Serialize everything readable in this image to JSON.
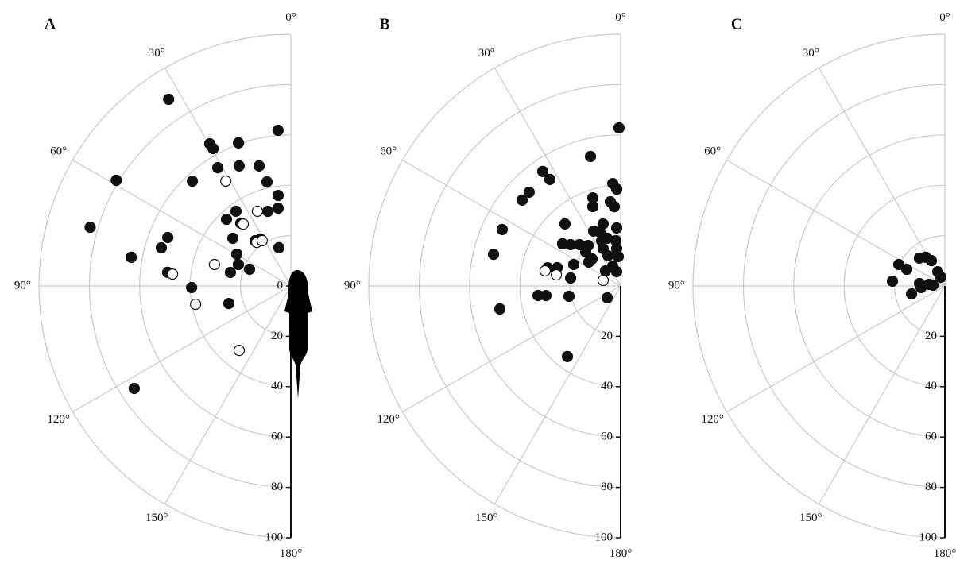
{
  "chart_data": [
    {
      "type": "polar-scatter",
      "panel_label": "A",
      "rlim": [
        0,
        100
      ],
      "thetalim": [
        0,
        180
      ],
      "rticks": [
        0,
        20,
        40,
        60,
        80,
        100
      ],
      "thetaticks": [
        {
          "value": 0,
          "label": "0°"
        },
        {
          "value": 30,
          "label": "30°"
        },
        {
          "value": 60,
          "label": "60°"
        },
        {
          "value": 90,
          "label": "90°"
        },
        {
          "value": 120,
          "label": "120°"
        },
        {
          "value": 150,
          "label": "150°"
        },
        {
          "value": 180,
          "label": "180°"
        }
      ],
      "grid": true,
      "series": [
        {
          "color": "#111111",
          "marker_fill": "#111111",
          "theta": [
            33.2,
            4.7,
            58.8,
            73.7,
            29.7,
            29.5,
            20.1,
            31.7,
            23.3,
            14.8,
            12.9,
            43.2,
            8,
            9.3,
            17.1,
            36.3,
            44,
            38.6,
            50.6,
            38.3,
            32.8,
            17.4,
            59.5,
            67.8,
            68,
            77.4,
            68.5,
            73.6,
            79.8,
            83.7,
            90.9,
            105.8,
            123.2
          ],
          "values": [
            88.6,
            62,
            81,
            83,
            65,
            62.7,
            60.5,
            55.2,
            51.9,
            49.3,
            42.4,
            57.1,
            36.3,
            31.3,
            31,
            36.8,
            36.8,
            31.9,
            29.8,
            22.9,
            22.1,
            15.9,
            24.9,
            22.5,
            17.7,
            24.6,
            52.5,
            53.6,
            64.4,
            49.2,
            39.4,
            25.6,
            74.3
          ]
        },
        {
          "color": "#111111",
          "marker_fill": "#ffffff",
          "theta": [
            31.8,
            24.1,
            37.6,
            38,
            32.3,
            74.3,
            84.3,
            100.9,
            141.3
          ],
          "values": [
            49,
            32.5,
            31,
            22,
            21.3,
            31.5,
            47.2,
            38.5,
            32.8
          ]
        }
      ]
    },
    {
      "type": "polar-scatter",
      "panel_label": "B",
      "rlim": [
        0,
        100
      ],
      "thetalim": [
        0,
        180
      ],
      "rticks": [
        20,
        40,
        60,
        80,
        100
      ],
      "thetaticks": [
        {
          "value": 0,
          "label": "0°"
        },
        {
          "value": 30,
          "label": "30°"
        },
        {
          "value": 60,
          "label": "60°"
        },
        {
          "value": 90,
          "label": "90°"
        },
        {
          "value": 120,
          "label": "120°"
        },
        {
          "value": 150,
          "label": "150°"
        },
        {
          "value": 180,
          "label": "180°"
        }
      ],
      "grid": true,
      "series": [
        {
          "color": "#111111",
          "marker_fill": "#111111",
          "theta": [
            0.6,
            13.1,
            34.2,
            33.6,
            44.3,
            48.9,
            64.5,
            76,
            100.8,
            143,
            4.4,
            2.3,
            17.5,
            19.3,
            7,
            4.6,
            3.9,
            15.8,
            26.2,
            21,
            41.9,
            54,
            50.5,
            45,
            38.8,
            45.7,
            46.6,
            65.4,
            53.1,
            22.8,
            15.8,
            6,
            6.1,
            25.1,
            22.8,
            4.6,
            21.8,
            45,
            15.5,
            73.9,
            76,
            81,
            96.6,
            97.3,
            101.3,
            131.4
          ],
          "values": [
            62.8,
            52.8,
            55,
            50.8,
            52,
            51.9,
            52.1,
            52,
            48.8,
            35.1,
            40.8,
            38.5,
            36.7,
            33.4,
            33.7,
            31.6,
            23.1,
            25.6,
            24.3,
            23,
            33.1,
            28.5,
            25.8,
            23.2,
            20.6,
            19.4,
            15.6,
            20.5,
            15.8,
            19.5,
            19.7,
            18.1,
            14.9,
            16.4,
            13,
            11.7,
            8.5,
            8.5,
            5.9,
            26.2,
            29.9,
            20.1,
            33,
            29.9,
            20.9,
            7.1
          ]
        },
        {
          "color": "#111111",
          "marker_fill": "#ffffff",
          "theta": [
            78.7,
            80.2,
            72.3
          ],
          "values": [
            30.6,
            25.9,
            7.3
          ]
        }
      ]
    },
    {
      "type": "polar-scatter",
      "panel_label": "C",
      "rlim": [
        0,
        100
      ],
      "thetalim": [
        0,
        180
      ],
      "rticks": [
        20,
        40,
        60,
        80,
        100
      ],
      "thetaticks": [
        {
          "value": 0,
          "label": "0°"
        },
        {
          "value": 30,
          "label": "30°"
        },
        {
          "value": 60,
          "label": "60°"
        },
        {
          "value": 90,
          "label": "90°"
        },
        {
          "value": 120,
          "label": "120°"
        },
        {
          "value": 150,
          "label": "150°"
        },
        {
          "value": 180,
          "label": "180°"
        }
      ],
      "grid": true,
      "series": [
        {
          "color": "#111111",
          "marker_fill": "#111111",
          "theta": [
            42.4,
            33.7,
            28,
            65,
            66.4,
            26.6,
            24.4,
            84.8,
            84.6,
            84.3,
            86,
            93.8,
            103.4
          ],
          "values": [
            15,
            13.7,
            11.4,
            20.2,
            16.5,
            6.3,
            3.8,
            20.9,
            10.1,
            6.3,
            4.7,
            9.5,
            13.6
          ]
        }
      ]
    }
  ]
}
